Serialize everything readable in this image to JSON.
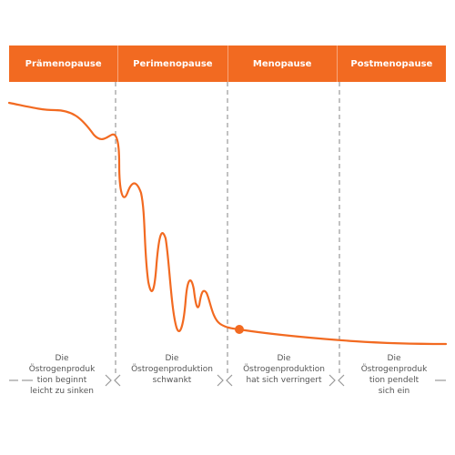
{
  "phases": [
    {
      "label": "Prämenopause"
    },
    {
      "label": "Perimenopause"
    },
    {
      "label": "Menopause"
    },
    {
      "label": "Postmenopause"
    }
  ],
  "descriptions": [
    {
      "lines": [
        "Die",
        "Östrogenproduk",
        "tion beginnt",
        "leicht zu sinken"
      ]
    },
    {
      "lines": [
        "Die",
        "Östrogenproduktion",
        "schwankt"
      ]
    },
    {
      "lines": [
        "Die",
        "Östrogenproduktion",
        "hat sich verringert"
      ]
    },
    {
      "lines": [
        "Die",
        "Östrogenproduk",
        "tion pendelt",
        "sich ein"
      ]
    }
  ],
  "colors": {
    "accent": "#f26a21",
    "divider": "#999999",
    "text": "#555555"
  }
}
